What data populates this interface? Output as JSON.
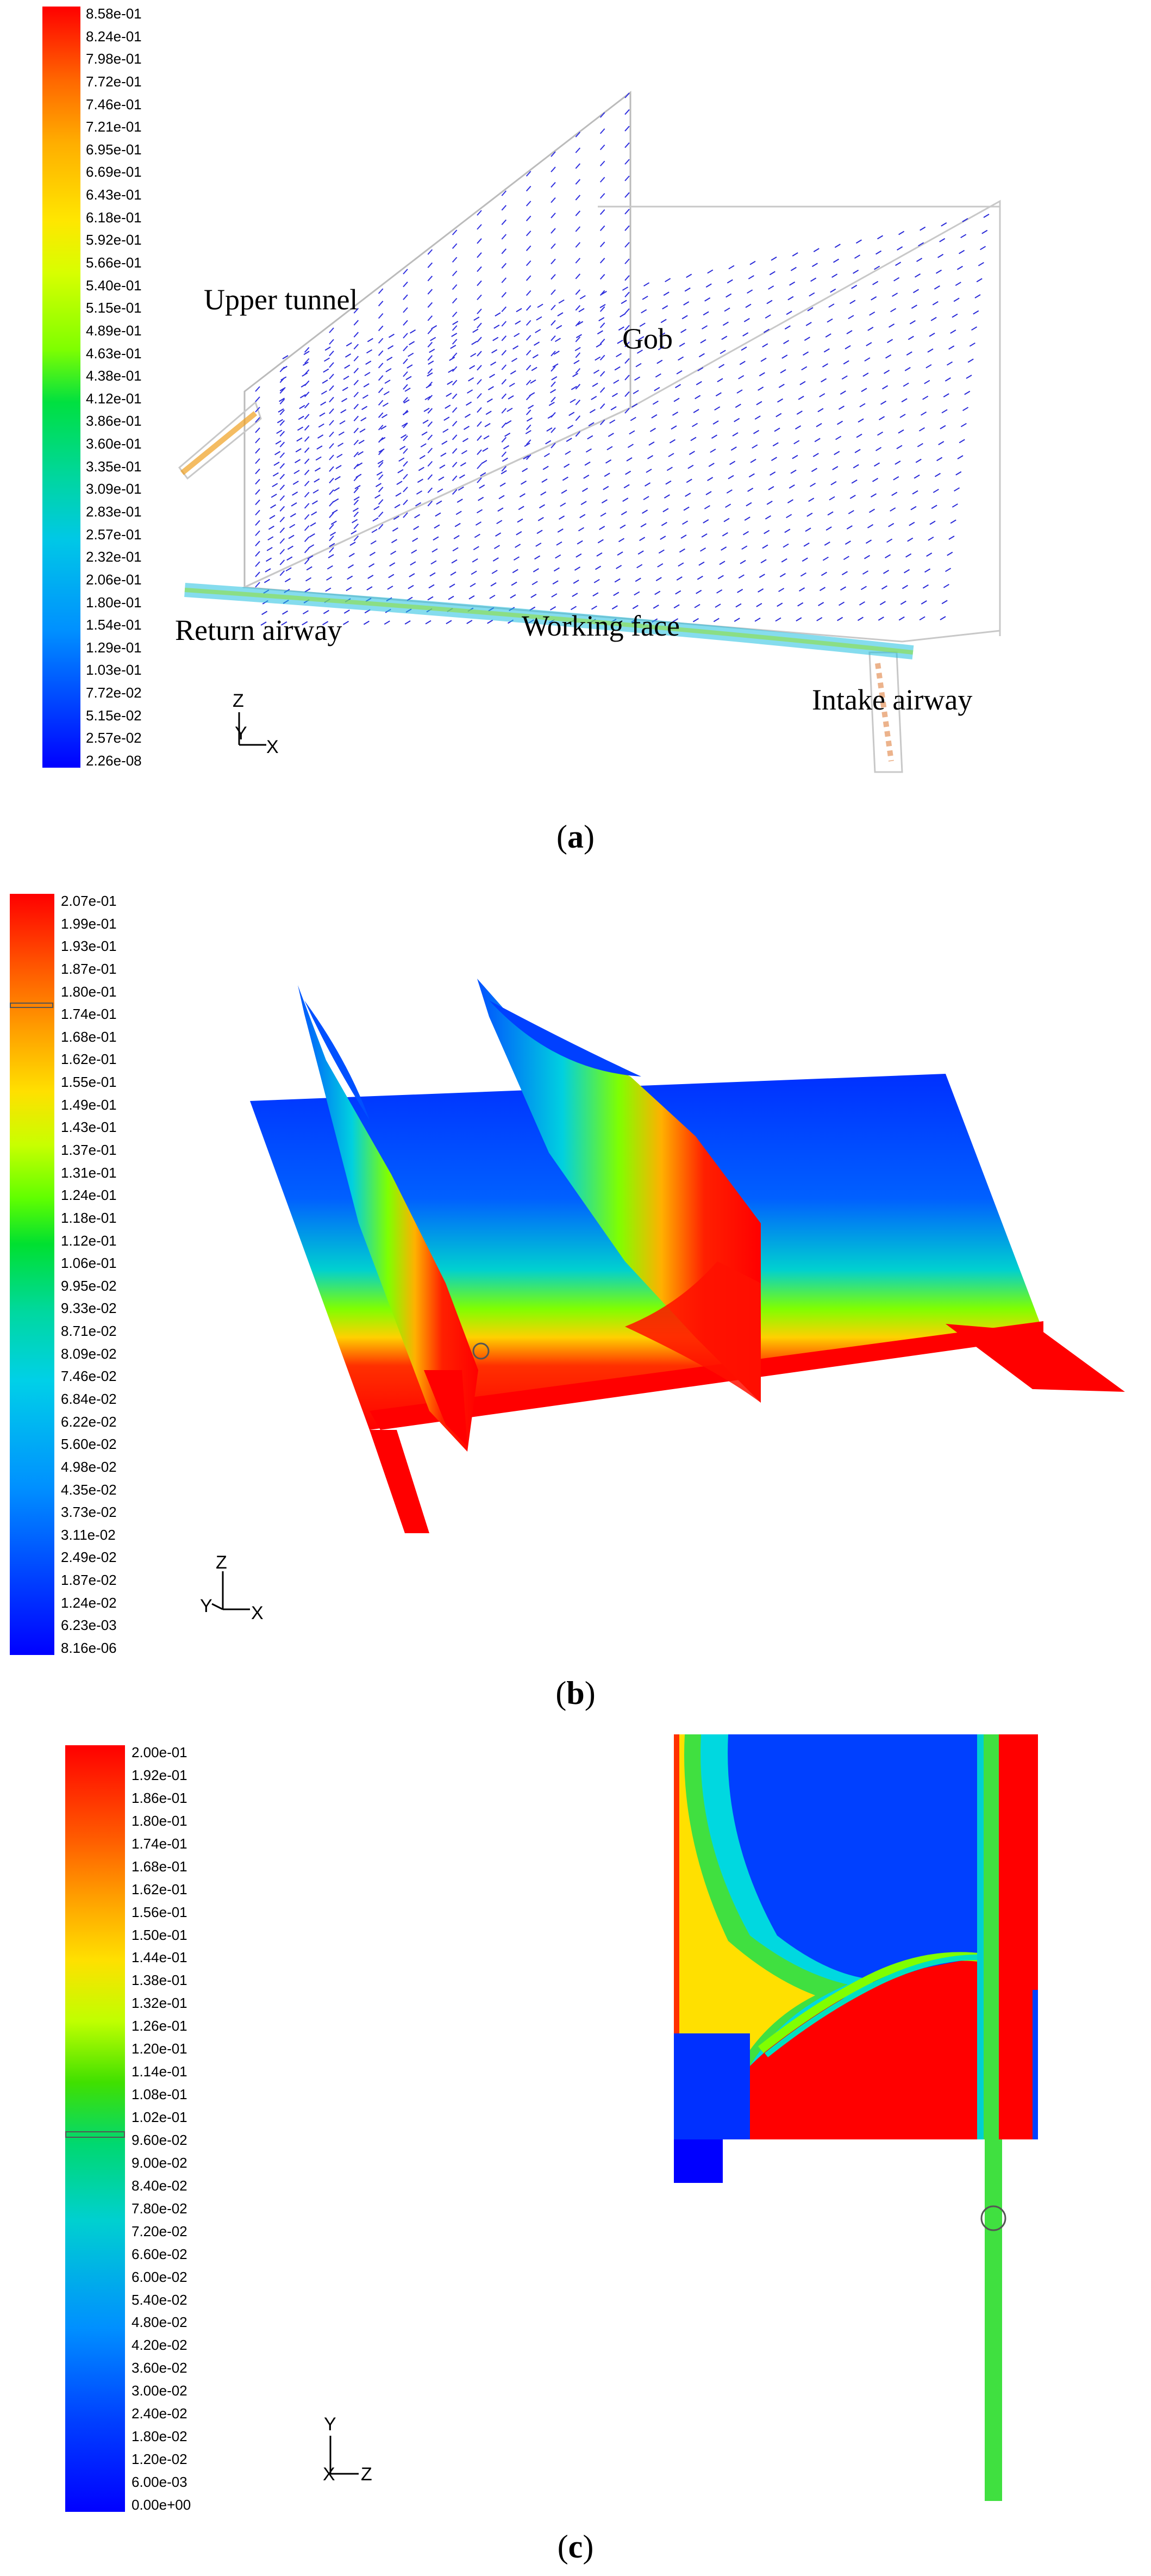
{
  "panels": {
    "a": {
      "caption_letter": "a",
      "legend_labels": [
        "8.58e-01",
        "8.24e-01",
        "7.98e-01",
        "7.72e-01",
        "7.46e-01",
        "7.21e-01",
        "6.95e-01",
        "6.69e-01",
        "6.43e-01",
        "6.18e-01",
        "5.92e-01",
        "5.66e-01",
        "5.40e-01",
        "5.15e-01",
        "4.89e-01",
        "4.63e-01",
        "4.38e-01",
        "4.12e-01",
        "3.86e-01",
        "3.60e-01",
        "3.35e-01",
        "3.09e-01",
        "2.83e-01",
        "2.57e-01",
        "2.32e-01",
        "2.06e-01",
        "1.80e-01",
        "1.54e-01",
        "1.29e-01",
        "1.03e-01",
        "7.72e-02",
        "5.15e-02",
        "2.57e-02",
        "2.26e-08"
      ],
      "labels": {
        "upper_tunnel": "Upper tunnel",
        "gob": "Gob",
        "return_airway": "Return airway",
        "working_face": "Working face",
        "intake_airway": "Intake airway"
      },
      "axes": {
        "z": "Z",
        "y": "Y",
        "x": "X"
      }
    },
    "b": {
      "caption_letter": "b",
      "legend_labels": [
        "2.07e-01",
        "1.99e-01",
        "1.93e-01",
        "1.87e-01",
        "1.80e-01",
        "1.74e-01",
        "1.68e-01",
        "1.62e-01",
        "1.55e-01",
        "1.49e-01",
        "1.43e-01",
        "1.37e-01",
        "1.31e-01",
        "1.24e-01",
        "1.18e-01",
        "1.12e-01",
        "1.06e-01",
        "9.95e-02",
        "9.33e-02",
        "8.71e-02",
        "8.09e-02",
        "7.46e-02",
        "6.84e-02",
        "6.22e-02",
        "5.60e-02",
        "4.98e-02",
        "4.35e-02",
        "3.73e-02",
        "3.11e-02",
        "2.49e-02",
        "1.87e-02",
        "1.24e-02",
        "6.23e-03",
        "8.16e-06"
      ],
      "axes": {
        "z": "Z",
        "y": "Y",
        "x": "X"
      }
    },
    "c": {
      "caption_letter": "c",
      "legend_labels": [
        "2.00e-01",
        "1.92e-01",
        "1.86e-01",
        "1.80e-01",
        "1.74e-01",
        "1.68e-01",
        "1.62e-01",
        "1.56e-01",
        "1.50e-01",
        "1.44e-01",
        "1.38e-01",
        "1.32e-01",
        "1.26e-01",
        "1.20e-01",
        "1.14e-01",
        "1.08e-01",
        "1.02e-01",
        "9.60e-02",
        "9.00e-02",
        "8.40e-02",
        "7.80e-02",
        "7.20e-02",
        "6.60e-02",
        "6.00e-02",
        "5.40e-02",
        "4.80e-02",
        "4.20e-02",
        "3.60e-02",
        "3.00e-02",
        "2.40e-02",
        "1.80e-02",
        "1.20e-02",
        "6.00e-03",
        "0.00e+00"
      ],
      "axes": {
        "y": "Y",
        "x": "X",
        "z": "Z"
      }
    }
  }
}
